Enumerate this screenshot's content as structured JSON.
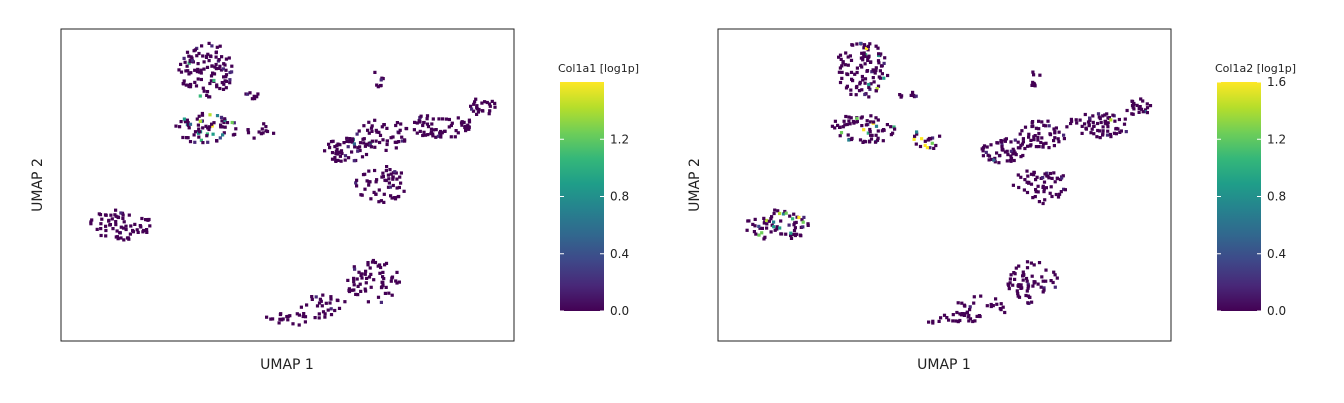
{
  "colors": {
    "viridis": [
      "#440154",
      "#482878",
      "#3e4989",
      "#31688e",
      "#26828e",
      "#1f9e89",
      "#35b779",
      "#6ece58",
      "#b5de2b",
      "#fde725"
    ],
    "frame": "#222222",
    "background": "#ffffff"
  },
  "chart_data": [
    {
      "type": "scatter",
      "xlabel": "UMAP 1",
      "ylabel": "UMAP 2",
      "colorbar": {
        "title": "Col1a1 [log1p]",
        "range": [
          0.0,
          1.6
        ],
        "ticks": [
          0.0,
          0.4,
          0.8,
          1.2
        ],
        "tick_labels": [
          "0.0",
          "0.4",
          "0.8",
          "1.2"
        ]
      },
      "clusters": [
        {
          "x": 0.32,
          "y": 0.87,
          "rx": 0.06,
          "ry": 0.09,
          "n": 110,
          "high_frac": 0.04
        },
        {
          "x": 0.32,
          "y": 0.68,
          "rx": 0.07,
          "ry": 0.05,
          "n": 70,
          "high_frac": 0.12
        },
        {
          "x": 0.44,
          "y": 0.67,
          "rx": 0.03,
          "ry": 0.03,
          "n": 14,
          "high_frac": 0.0
        },
        {
          "x": 0.42,
          "y": 0.79,
          "rx": 0.02,
          "ry": 0.015,
          "n": 8,
          "high_frac": 0.0
        },
        {
          "x": 0.7,
          "y": 0.84,
          "rx": 0.012,
          "ry": 0.03,
          "n": 8,
          "high_frac": 0.0
        },
        {
          "x": 0.63,
          "y": 0.61,
          "rx": 0.05,
          "ry": 0.04,
          "n": 55,
          "high_frac": 0.02
        },
        {
          "x": 0.71,
          "y": 0.66,
          "rx": 0.06,
          "ry": 0.05,
          "n": 55,
          "high_frac": 0.01
        },
        {
          "x": 0.71,
          "y": 0.5,
          "rx": 0.06,
          "ry": 0.06,
          "n": 60,
          "high_frac": 0.0
        },
        {
          "x": 0.84,
          "y": 0.69,
          "rx": 0.07,
          "ry": 0.04,
          "n": 70,
          "high_frac": 0.02
        },
        {
          "x": 0.93,
          "y": 0.75,
          "rx": 0.03,
          "ry": 0.03,
          "n": 24,
          "high_frac": 0.02
        },
        {
          "x": 0.13,
          "y": 0.37,
          "rx": 0.07,
          "ry": 0.05,
          "n": 70,
          "high_frac": 0.0
        },
        {
          "x": 0.69,
          "y": 0.19,
          "rx": 0.06,
          "ry": 0.07,
          "n": 65,
          "high_frac": 0.0
        },
        {
          "x": 0.58,
          "y": 0.11,
          "rx": 0.06,
          "ry": 0.04,
          "n": 30,
          "high_frac": 0.0
        },
        {
          "x": 0.51,
          "y": 0.07,
          "rx": 0.06,
          "ry": 0.02,
          "n": 20,
          "high_frac": 0.0
        }
      ]
    },
    {
      "type": "scatter",
      "xlabel": "UMAP 1",
      "ylabel": "UMAP 2",
      "colorbar": {
        "title": "Col1a2 [log1p]",
        "range": [
          0.0,
          1.6
        ],
        "ticks": [
          0.0,
          0.4,
          0.8,
          1.2,
          1.6
        ],
        "tick_labels": [
          "0.0",
          "0.4",
          "0.8",
          "1.2",
          "1.6"
        ]
      },
      "clusters": [
        {
          "x": 0.32,
          "y": 0.87,
          "rx": 0.06,
          "ry": 0.09,
          "n": 110,
          "high_frac": 0.1
        },
        {
          "x": 0.32,
          "y": 0.68,
          "rx": 0.07,
          "ry": 0.05,
          "n": 70,
          "high_frac": 0.12
        },
        {
          "x": 0.46,
          "y": 0.65,
          "rx": 0.03,
          "ry": 0.04,
          "n": 20,
          "high_frac": 0.45
        },
        {
          "x": 0.42,
          "y": 0.79,
          "rx": 0.02,
          "ry": 0.015,
          "n": 8,
          "high_frac": 0.0
        },
        {
          "x": 0.7,
          "y": 0.84,
          "rx": 0.012,
          "ry": 0.03,
          "n": 8,
          "high_frac": 0.0
        },
        {
          "x": 0.63,
          "y": 0.61,
          "rx": 0.05,
          "ry": 0.04,
          "n": 55,
          "high_frac": 0.02
        },
        {
          "x": 0.71,
          "y": 0.66,
          "rx": 0.06,
          "ry": 0.05,
          "n": 55,
          "high_frac": 0.02
        },
        {
          "x": 0.71,
          "y": 0.5,
          "rx": 0.06,
          "ry": 0.06,
          "n": 60,
          "high_frac": 0.0
        },
        {
          "x": 0.84,
          "y": 0.69,
          "rx": 0.07,
          "ry": 0.04,
          "n": 70,
          "high_frac": 0.03
        },
        {
          "x": 0.93,
          "y": 0.75,
          "rx": 0.03,
          "ry": 0.03,
          "n": 24,
          "high_frac": 0.02
        },
        {
          "x": 0.13,
          "y": 0.37,
          "rx": 0.07,
          "ry": 0.05,
          "n": 70,
          "high_frac": 0.18
        },
        {
          "x": 0.69,
          "y": 0.19,
          "rx": 0.06,
          "ry": 0.07,
          "n": 65,
          "high_frac": 0.0
        },
        {
          "x": 0.58,
          "y": 0.11,
          "rx": 0.06,
          "ry": 0.04,
          "n": 30,
          "high_frac": 0.0
        },
        {
          "x": 0.51,
          "y": 0.07,
          "rx": 0.06,
          "ry": 0.02,
          "n": 20,
          "high_frac": 0.0
        }
      ]
    }
  ]
}
